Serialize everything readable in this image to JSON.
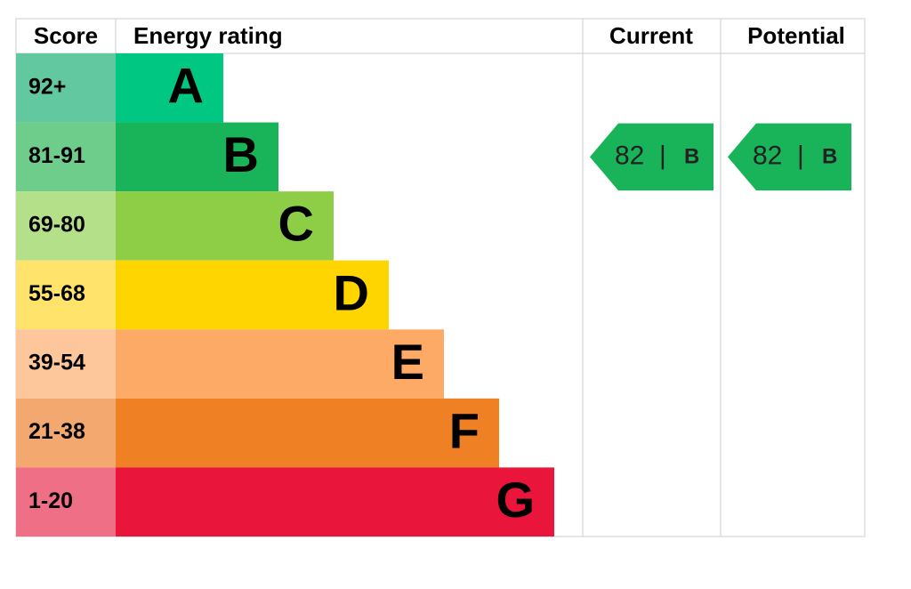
{
  "headers": {
    "score": "Score",
    "rating": "Energy rating",
    "current": "Current",
    "potential": "Potential"
  },
  "rows": [
    {
      "score": "92+",
      "letter": "A",
      "color": "#00c781",
      "score_color": "#62c8a0"
    },
    {
      "score": "81-91",
      "letter": "B",
      "color": "#19b459",
      "score_color": "#6fcd8b"
    },
    {
      "score": "69-80",
      "letter": "C",
      "color": "#8dce46",
      "score_color": "#b5e08a"
    },
    {
      "score": "55-68",
      "letter": "D",
      "color": "#ffd500",
      "score_color": "#ffe36b"
    },
    {
      "score": "39-54",
      "letter": "E",
      "color": "#fcaa65",
      "score_color": "#fdc79b"
    },
    {
      "score": "21-38",
      "letter": "F",
      "color": "#ef8023",
      "score_color": "#f3a86f"
    },
    {
      "score": "1-20",
      "letter": "G",
      "color": "#e9153b",
      "score_color": "#ef6f86"
    }
  ],
  "current": {
    "value": 82,
    "separator": "|",
    "letter": "B"
  },
  "potential": {
    "value": 82,
    "separator": "|",
    "letter": "B"
  }
}
